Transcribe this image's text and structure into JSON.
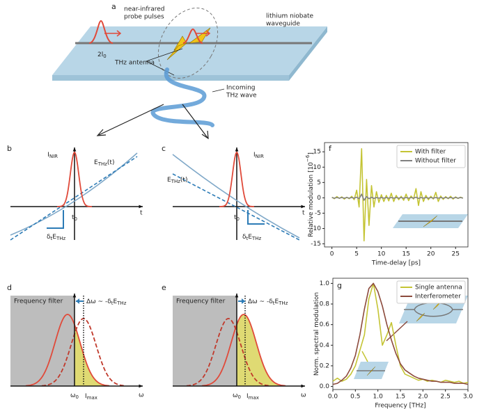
{
  "panel_labels": [
    "a",
    "b",
    "c",
    "d",
    "e",
    "f",
    "g"
  ],
  "panel_a": {
    "probe_label": [
      "near-infrared",
      "probe pulses"
    ],
    "waveguide_label": [
      "lithium niobate",
      "waveguide"
    ],
    "spacing": {
      "parts": [
        "2l",
        "0"
      ],
      "script": "sub"
    },
    "antenna_label": "THz antenna",
    "wave_label": [
      "Incoming",
      "THz wave"
    ]
  },
  "panel_b": {
    "pulse": {
      "parts": [
        "I",
        "NIR"
      ],
      "script": "sub"
    },
    "field": {
      "parts": [
        "E",
        "THz",
        "(t)"
      ],
      "script": "sub"
    },
    "t_axis": "t",
    "t0": {
      "parts": [
        "t",
        "0"
      ],
      "script": "sub"
    },
    "slope": {
      "parts": [
        "δ",
        "t",
        "E",
        "THz"
      ],
      "script": "sub"
    }
  },
  "panel_c": {
    "pulse": {
      "parts": [
        "I",
        "NIR"
      ],
      "script": "sub"
    },
    "field": {
      "parts": [
        "E",
        "THz",
        "(t)"
      ],
      "script": "sub"
    },
    "t_axis": "t",
    "t0": {
      "parts": [
        "t",
        "0"
      ],
      "script": "sub"
    },
    "slope": {
      "parts": [
        "δ",
        "t",
        "E",
        "THz"
      ],
      "script": "sub"
    }
  },
  "panel_d": {
    "filter": "Frequency filter",
    "shift": {
      "parts": [
        "Δω ~ -δ",
        "t",
        "E",
        "THz"
      ],
      "script": "sub"
    },
    "omega0": {
      "parts": [
        "ω",
        "0"
      ],
      "script": "sub"
    },
    "omega": "ω",
    "imax": {
      "parts": [
        "I",
        "max"
      ],
      "script": "sub"
    }
  },
  "panel_e": {
    "filter": "Frequency filter",
    "shift": {
      "parts": [
        "Δω ~ -δ",
        "t",
        "E",
        "THz"
      ],
      "script": "sub"
    },
    "omega0": {
      "parts": [
        "ω",
        "0"
      ],
      "script": "sub"
    },
    "omega": "ω",
    "imax": {
      "parts": [
        "I",
        "max"
      ],
      "script": "sub"
    }
  },
  "chart_data": [
    {
      "type": "line",
      "x_label": "Time-delay [ps]",
      "y_label": {
        "parts": [
          "Relative modulation [10",
          "−6",
          "]"
        ],
        "script": "sup"
      },
      "xlim": [
        -1.5,
        27.5
      ],
      "ylim": [
        -16,
        18
      ],
      "xticks": [
        0,
        5,
        10,
        15,
        20,
        25
      ],
      "yticks": [
        -15,
        -10,
        -5,
        0,
        5,
        10,
        15
      ],
      "legend": "upper right",
      "x": [
        0,
        0.5,
        1,
        1.5,
        2,
        2.5,
        3,
        3.5,
        4,
        4.5,
        5,
        5.5,
        6,
        6.5,
        7,
        7.5,
        8,
        8.5,
        9,
        9.5,
        10,
        10.5,
        11,
        11.5,
        12,
        12.5,
        13,
        13.5,
        14,
        14.5,
        15,
        15.5,
        16,
        16.5,
        17,
        17.5,
        18,
        18.5,
        19,
        19.5,
        20,
        20.5,
        21,
        21.5,
        22,
        22.5,
        23,
        23.5,
        24,
        24.5,
        25,
        25.5,
        26,
        26.5
      ],
      "series": [
        {
          "name": "With filter",
          "color": "#c4c434",
          "values": [
            0.2,
            -0.3,
            0.4,
            -0.2,
            0.3,
            -0.4,
            0.2,
            -0.3,
            0.5,
            -0.6,
            2.5,
            -3,
            16,
            -14,
            6,
            -9,
            4,
            -3,
            2,
            -1.5,
            1,
            -1.2,
            0.8,
            -1,
            1.5,
            -1.2,
            0.8,
            -0.6,
            0.5,
            -0.8,
            1.2,
            -0.9,
            0.6,
            -0.4,
            3,
            -2.5,
            2,
            -1.2,
            0.8,
            -0.6,
            0.5,
            -0.4,
            1.8,
            -1.2,
            0.6,
            -0.5,
            0.4,
            -0.3,
            0.5,
            -0.4,
            0.3,
            -0.2,
            0.2,
            -0.1
          ]
        },
        {
          "name": "Without filter",
          "color": "#808080",
          "values": [
            0.1,
            -0.1,
            0.1,
            -0.1,
            0.1,
            -0.1,
            0.1,
            -0.1,
            0.1,
            -0.1,
            0.2,
            -0.3,
            1.2,
            -0.8,
            0.4,
            -0.3,
            0.2,
            -0.2,
            0.1,
            -0.1,
            0.1,
            -0.1,
            0.1,
            -0.1,
            0.1,
            -0.1,
            0.1,
            -0.1,
            0.1,
            -0.1,
            0.1,
            -0.1,
            0.1,
            -0.1,
            0.2,
            -0.2,
            0.1,
            -0.1,
            0.1,
            -0.1,
            0.1,
            -0.1,
            0.1,
            -0.1,
            0.1,
            -0.1,
            0.1,
            -0.1,
            0.1,
            -0.1,
            0.1,
            -0.1,
            0.1,
            -0.1
          ]
        }
      ]
    },
    {
      "type": "line",
      "x_label": "Frequency [THz]",
      "y_label": {
        "parts": [
          "Norm. spectral modulation"
        ],
        "script": "sup"
      },
      "xlim": [
        0,
        3
      ],
      "ylim": [
        -0.03,
        1.05
      ],
      "xticks": [
        {
          "value": 0,
          "label": "0.0"
        },
        {
          "value": 0.5,
          "label": "0.5"
        },
        {
          "value": 1,
          "label": "1.0"
        },
        {
          "value": 1.5,
          "label": "1.5"
        },
        {
          "value": 2,
          "label": "2.0"
        },
        {
          "value": 2.5,
          "label": "2.5"
        },
        {
          "value": 3,
          "label": "3.0"
        }
      ],
      "yticks": [
        {
          "value": 0,
          "label": "0.0"
        },
        {
          "value": 0.2,
          "label": "0.2"
        },
        {
          "value": 0.4,
          "label": "0.4"
        },
        {
          "value": 0.6,
          "label": "0.6"
        },
        {
          "value": 0.8,
          "label": "0.8"
        },
        {
          "value": 1,
          "label": "1.0"
        }
      ],
      "legend": "upper right",
      "x": [
        0,
        0.1,
        0.2,
        0.3,
        0.4,
        0.5,
        0.6,
        0.7,
        0.8,
        0.9,
        1,
        1.1,
        1.2,
        1.3,
        1.4,
        1.5,
        1.6,
        1.7,
        1.8,
        1.9,
        2,
        2.1,
        2.2,
        2.3,
        2.4,
        2.5,
        2.6,
        2.7,
        2.8,
        2.9,
        3
      ],
      "series": [
        {
          "name": "Single antenna",
          "color": "#c4c434",
          "values": [
            0.05,
            0.08,
            0.05,
            0.07,
            0.12,
            0.2,
            0.35,
            0.5,
            0.85,
            1,
            0.75,
            0.4,
            0.5,
            0.62,
            0.4,
            0.2,
            0.12,
            0.1,
            0.08,
            0.06,
            0.07,
            0.05,
            0.06,
            0.05,
            0.04,
            0.06,
            0.05,
            0.04,
            0.05,
            0.03,
            0.04
          ]
        },
        {
          "name": "Interferometer",
          "color": "#8c4a3c",
          "values": [
            0.02,
            0.03,
            0.06,
            0.1,
            0.18,
            0.3,
            0.5,
            0.75,
            0.95,
            1,
            0.92,
            0.78,
            0.6,
            0.45,
            0.32,
            0.22,
            0.16,
            0.13,
            0.1,
            0.08,
            0.07,
            0.06,
            0.05,
            0.05,
            0.04,
            0.04,
            0.04,
            0.03,
            0.03,
            0.03,
            0.02
          ]
        }
      ]
    }
  ]
}
